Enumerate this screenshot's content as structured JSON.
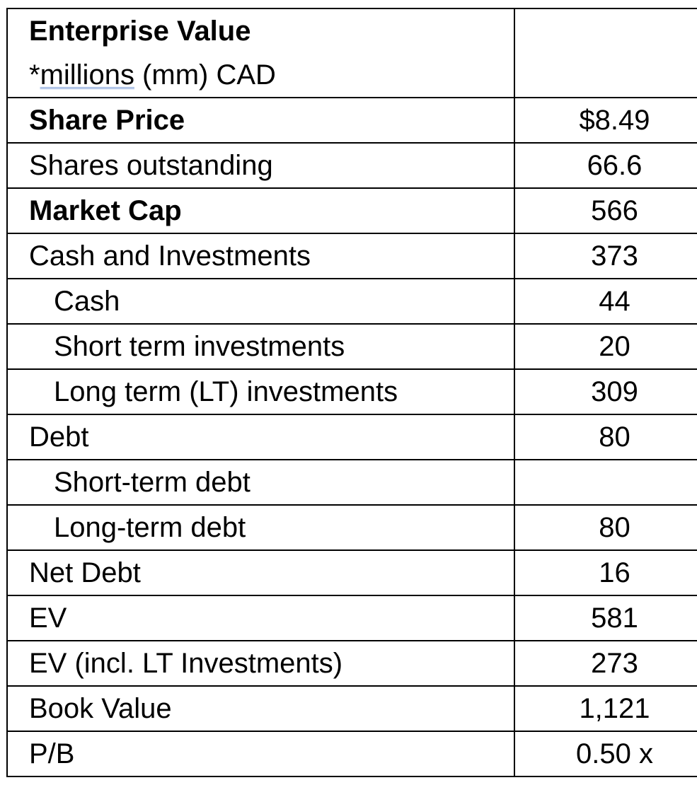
{
  "header": {
    "title": "Enterprise Value",
    "subtitle_prefix": "*",
    "subtitle_underlined": "millions",
    "subtitle_suffix": " (mm) CAD",
    "value": ""
  },
  "rows": [
    {
      "label": "Share Price",
      "value": "$8.49",
      "bold": true,
      "indent": false
    },
    {
      "label": "Shares outstanding",
      "value": "66.6",
      "bold": false,
      "indent": false
    },
    {
      "label": "Market Cap",
      "value": "566",
      "bold": true,
      "indent": false
    },
    {
      "label": "Cash and Investments",
      "value": "373",
      "bold": false,
      "indent": false
    },
    {
      "label": "Cash",
      "value": "44",
      "bold": false,
      "indent": true
    },
    {
      "label": "Short term investments",
      "value": "20",
      "bold": false,
      "indent": true
    },
    {
      "label": "Long term (LT) investments",
      "value": "309",
      "bold": false,
      "indent": true
    },
    {
      "label": "Debt",
      "value": "80",
      "bold": false,
      "indent": false
    },
    {
      "label": "Short-term debt",
      "value": "",
      "bold": false,
      "indent": true
    },
    {
      "label": "Long-term debt",
      "value": "80",
      "bold": false,
      "indent": true
    },
    {
      "label": "Net Debt",
      "value": "16",
      "bold": false,
      "indent": false
    },
    {
      "label": "EV",
      "value": "581",
      "bold": false,
      "indent": false
    },
    {
      "label": "EV (incl. LT Investments)",
      "value": "273",
      "bold": false,
      "indent": false
    },
    {
      "label": "Book Value",
      "value": "1,121",
      "bold": false,
      "indent": false
    },
    {
      "label": "P/B",
      "value": "0.50 x",
      "bold": false,
      "indent": false
    }
  ]
}
